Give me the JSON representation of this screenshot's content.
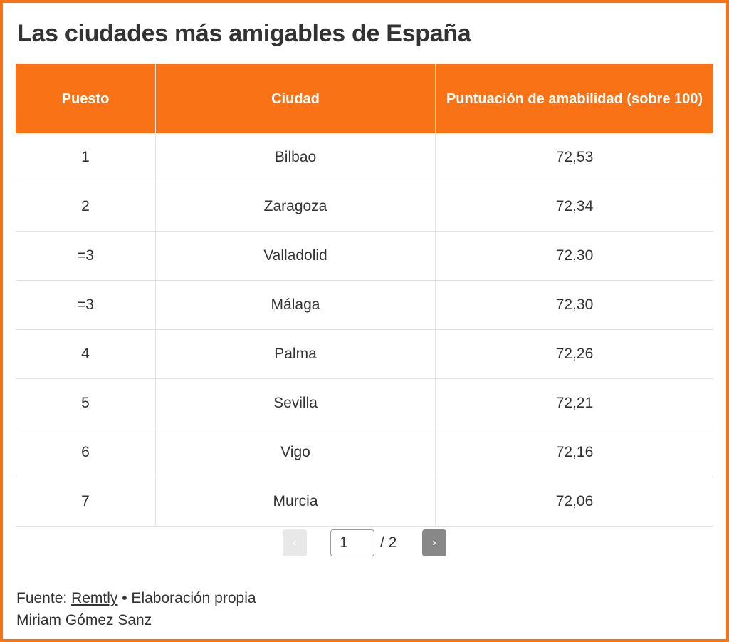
{
  "title": "Las ciudades más amigables de España",
  "colors": {
    "accent": "#f97316"
  },
  "table": {
    "headers": [
      "Puesto",
      "Ciudad",
      "Puntuación de amabilidad (sobre 100)"
    ],
    "rows": [
      [
        "1",
        "Bilbao",
        "72,53"
      ],
      [
        "2",
        "Zaragoza",
        "72,34"
      ],
      [
        "=3",
        "Valladolid",
        "72,30"
      ],
      [
        "=3",
        "Málaga",
        "72,30"
      ],
      [
        "4",
        "Palma",
        "72,26"
      ],
      [
        "5",
        "Sevilla",
        "72,21"
      ],
      [
        "6",
        "Vigo",
        "72,16"
      ],
      [
        "7",
        "Murcia",
        "72,06"
      ]
    ]
  },
  "pagination": {
    "prev": "‹",
    "next": "›",
    "current": "1",
    "total": "/ 2"
  },
  "footer": {
    "source_label": "Fuente:",
    "source_link": "Remtly",
    "source_suffix": "• Elaboración propia",
    "author": "Miriam Gómez Sanz"
  }
}
